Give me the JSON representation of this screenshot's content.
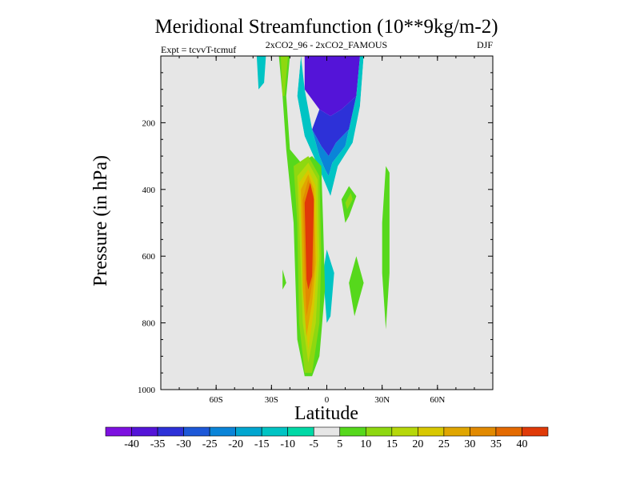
{
  "chart_data": {
    "type": "contour",
    "title": "Meridional Streamfunction (10**9kg/m-2)",
    "left_subtitle": "Expt = tcvvT-tcmuf",
    "center_subtitle": "2xCO2_96 - 2xCO2_FAMOUS",
    "right_subtitle": "DJF",
    "xlabel": "Latitude",
    "ylabel": "Pressure (in hPa)",
    "xlim": [
      -90,
      90
    ],
    "ylim": [
      0,
      1000
    ],
    "y_inverted": true,
    "x_ticks": [
      {
        "value": -60,
        "label": "60S"
      },
      {
        "value": -30,
        "label": "30S"
      },
      {
        "value": 0,
        "label": "0"
      },
      {
        "value": 30,
        "label": "30N"
      },
      {
        "value": 60,
        "label": "60N"
      }
    ],
    "y_ticks": [
      {
        "value": 200,
        "label": "200"
      },
      {
        "value": 400,
        "label": "400"
      },
      {
        "value": 600,
        "label": "600"
      },
      {
        "value": 800,
        "label": "800"
      },
      {
        "value": 1000,
        "label": "1000"
      }
    ],
    "background_color": "#e6e6e6",
    "colorbar": {
      "labels": [
        "-40",
        "-35",
        "-30",
        "-25",
        "-20",
        "-15",
        "-10",
        "-5",
        "5",
        "10",
        "15",
        "20",
        "25",
        "30",
        "35",
        "40"
      ],
      "colors": [
        "#7d10e0",
        "#5414d8",
        "#2d31d8",
        "#1d58d8",
        "#0a84d8",
        "#01a6d0",
        "#00c4c4",
        "#00d9a6",
        "#e6e6e6",
        "#56d81c",
        "#8ed810",
        "#b6d80a",
        "#d8c800",
        "#e0a600",
        "#e28a00",
        "#e46a00",
        "#e03a08"
      ]
    },
    "regions": [
      {
        "value": -40,
        "points": [
          [
            -12,
            0
          ],
          [
            18,
            0
          ],
          [
            16,
            120
          ],
          [
            8,
            160
          ],
          [
            2,
            180
          ],
          [
            -4,
            160
          ],
          [
            -12,
            100
          ]
        ]
      },
      {
        "value": -32,
        "points": [
          [
            -4,
            160
          ],
          [
            2,
            180
          ],
          [
            8,
            160
          ],
          [
            16,
            120
          ],
          [
            12,
            220
          ],
          [
            5,
            260
          ],
          [
            1,
            300
          ],
          [
            -3,
            270
          ],
          [
            -8,
            220
          ]
        ]
      },
      {
        "value": -22,
        "points": [
          [
            -8,
            220
          ],
          [
            -3,
            270
          ],
          [
            1,
            300
          ],
          [
            5,
            260
          ],
          [
            12,
            220
          ],
          [
            10,
            270
          ],
          [
            3,
            320
          ],
          [
            1,
            360
          ],
          [
            -1,
            340
          ],
          [
            -4,
            300
          ]
        ]
      },
      {
        "value": -12,
        "points": [
          [
            -14,
            0
          ],
          [
            -12,
            100
          ],
          [
            -8,
            220
          ],
          [
            -4,
            300
          ],
          [
            -1,
            340
          ],
          [
            1,
            360
          ],
          [
            3,
            320
          ],
          [
            10,
            270
          ],
          [
            16,
            120
          ],
          [
            18,
            0
          ],
          [
            20,
            0
          ],
          [
            18,
            150
          ],
          [
            14,
            260
          ],
          [
            6,
            330
          ],
          [
            2,
            420
          ],
          [
            -4,
            340
          ],
          [
            -12,
            240
          ],
          [
            -16,
            120
          ]
        ]
      },
      {
        "value": -5,
        "points": [
          [
            -16,
            0
          ],
          [
            -14,
            0
          ],
          [
            -16,
            120
          ],
          [
            -12,
            240
          ],
          [
            -4,
            340
          ],
          [
            2,
            420
          ],
          [
            6,
            330
          ],
          [
            14,
            260
          ],
          [
            18,
            150
          ],
          [
            20,
            0
          ],
          [
            26,
            0
          ],
          [
            22,
            150
          ],
          [
            24,
            290
          ],
          [
            14,
            330
          ],
          [
            8,
            400
          ],
          [
            18,
            520
          ],
          [
            20,
            640
          ],
          [
            16,
            870
          ],
          [
            10,
            650
          ],
          [
            4,
            550
          ],
          [
            2,
            800
          ],
          [
            4,
            930
          ],
          [
            0,
            950
          ],
          [
            -2,
            700
          ],
          [
            0,
            450
          ],
          [
            -8,
            330
          ],
          [
            -16,
            220
          ],
          [
            -20,
            120
          ],
          [
            -18,
            0
          ]
        ]
      },
      {
        "value": -5,
        "points": [
          [
            -44,
            0
          ],
          [
            -32,
            0
          ],
          [
            -30,
            100
          ],
          [
            -34,
            200
          ],
          [
            -38,
            250
          ],
          [
            -42,
            220
          ],
          [
            -40,
            120
          ]
        ]
      },
      {
        "value": -12,
        "points": [
          [
            -38,
            0
          ],
          [
            -33,
            0
          ],
          [
            -34,
            80
          ],
          [
            -37,
            100
          ]
        ]
      },
      {
        "value": -15,
        "points": [
          [
            0,
            580
          ],
          [
            4,
            650
          ],
          [
            2,
            780
          ],
          [
            0,
            800
          ],
          [
            -2,
            650
          ]
        ]
      },
      {
        "value": 5,
        "points": [
          [
            -26,
            0
          ],
          [
            -20,
            0
          ],
          [
            -22,
            120
          ],
          [
            -20,
            280
          ],
          [
            -14,
            320
          ],
          [
            -8,
            300
          ],
          [
            -3,
            330
          ],
          [
            -2,
            500
          ],
          [
            -1,
            700
          ],
          [
            -4,
            900
          ],
          [
            -8,
            960
          ],
          [
            -12,
            960
          ],
          [
            -16,
            850
          ],
          [
            -18,
            500
          ],
          [
            -22,
            280
          ],
          [
            -24,
            120
          ]
        ]
      },
      {
        "value": 10,
        "points": [
          [
            -25,
            0
          ],
          [
            -21,
            0
          ],
          [
            -23,
            120
          ],
          [
            -24,
            120
          ]
        ]
      },
      {
        "value": 10,
        "points": [
          [
            -18,
            330
          ],
          [
            -10,
            300
          ],
          [
            -4,
            360
          ],
          [
            -3,
            600
          ],
          [
            -4,
            800
          ],
          [
            -8,
            950
          ],
          [
            -12,
            950
          ],
          [
            -15,
            800
          ],
          [
            -16,
            500
          ]
        ]
      },
      {
        "value": 15,
        "points": [
          [
            -16,
            360
          ],
          [
            -10,
            320
          ],
          [
            -5,
            370
          ],
          [
            -4,
            600
          ],
          [
            -6,
            800
          ],
          [
            -10,
            920
          ],
          [
            -13,
            800
          ],
          [
            -15,
            500
          ]
        ]
      },
      {
        "value": 20,
        "points": [
          [
            -15,
            380
          ],
          [
            -10,
            340
          ],
          [
            -6,
            390
          ],
          [
            -5,
            600
          ],
          [
            -7,
            760
          ],
          [
            -10,
            880
          ],
          [
            -12,
            780
          ],
          [
            -14,
            500
          ]
        ]
      },
      {
        "value": 25,
        "points": [
          [
            -14,
            400
          ],
          [
            -10,
            355
          ],
          [
            -7,
            400
          ],
          [
            -6,
            620
          ],
          [
            -8,
            740
          ],
          [
            -11,
            840
          ],
          [
            -13,
            700
          ]
        ]
      },
      {
        "value": 30,
        "points": [
          [
            -13,
            430
          ],
          [
            -10,
            370
          ],
          [
            -7,
            420
          ],
          [
            -7,
            640
          ],
          [
            -9,
            720
          ],
          [
            -11,
            780
          ],
          [
            -12,
            650
          ]
        ]
      },
      {
        "value": 40,
        "points": [
          [
            -12,
            440
          ],
          [
            -9,
            380
          ],
          [
            -7,
            430
          ],
          [
            -8,
            660
          ],
          [
            -10,
            700
          ],
          [
            -11,
            670
          ]
        ]
      },
      {
        "value": 5,
        "points": [
          [
            -24,
            640
          ],
          [
            -22,
            680
          ],
          [
            -24,
            700
          ]
        ]
      },
      {
        "value": 5,
        "points": [
          [
            8,
            430
          ],
          [
            12,
            390
          ],
          [
            16,
            420
          ],
          [
            12,
            480
          ],
          [
            10,
            500
          ]
        ]
      },
      {
        "value": 10,
        "points": [
          [
            10,
            440
          ],
          [
            13,
            410
          ],
          [
            14,
            430
          ],
          [
            11,
            460
          ]
        ]
      },
      {
        "value": 5,
        "points": [
          [
            12,
            680
          ],
          [
            16,
            600
          ],
          [
            20,
            680
          ],
          [
            15,
            780
          ]
        ]
      },
      {
        "value": 5,
        "points": [
          [
            32,
            330
          ],
          [
            34,
            350
          ],
          [
            34,
            650
          ],
          [
            32,
            820
          ],
          [
            30,
            650
          ],
          [
            30,
            500
          ]
        ]
      }
    ]
  }
}
